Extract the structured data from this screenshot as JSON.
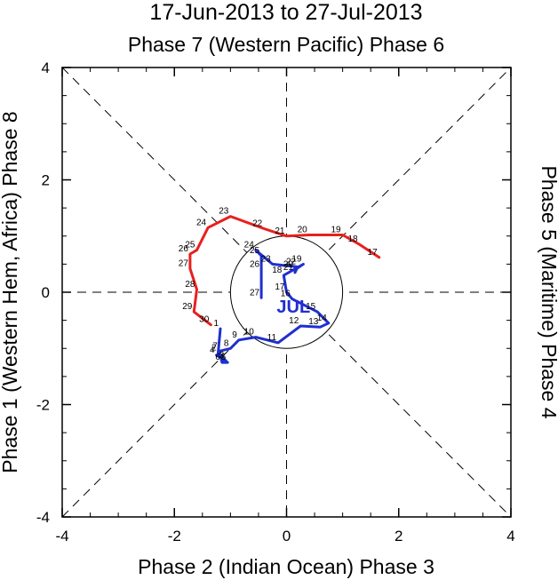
{
  "chart_data": {
    "type": "line",
    "title": "17-Jun-2013 to 27-Jul-2013",
    "top_label": "Phase 7 (Western Pacific) Phase 6",
    "bottom_label": "Phase 2 (Indian Ocean) Phase 3",
    "left_label": "Phase 1 (Western Hem, Africa) Phase 8",
    "right_label": "Phase 5 (Maritime) Phase 4",
    "xlim": [
      -4,
      4
    ],
    "ylim": [
      -4,
      4
    ],
    "x_ticks": [
      "-4",
      "-2",
      "0",
      "2",
      "4"
    ],
    "y_ticks": [
      "-4",
      "-2",
      "0",
      "2",
      "4"
    ],
    "month_label": "JUL",
    "colors": {
      "june": "#e8201e",
      "july": "#1f2fd0",
      "axis": "#000000"
    },
    "series": [
      {
        "name": "June",
        "color": "#e8201e",
        "points": [
          {
            "day": "17",
            "x": 1.65,
            "y": 0.62
          },
          {
            "day": "18",
            "x": 1.3,
            "y": 0.85
          },
          {
            "day": "19",
            "x": 1.0,
            "y": 1.02
          },
          {
            "day": "20",
            "x": 0.4,
            "y": 1.02
          },
          {
            "day": "21",
            "x": 0.0,
            "y": 1.0
          },
          {
            "day": "22",
            "x": -0.4,
            "y": 1.13
          },
          {
            "day": "23",
            "x": -1.0,
            "y": 1.35
          },
          {
            "day": "24",
            "x": -1.4,
            "y": 1.15
          },
          {
            "day": "25",
            "x": -1.6,
            "y": 0.75
          },
          {
            "day": "26",
            "x": -1.72,
            "y": 0.68
          },
          {
            "day": "27",
            "x": -1.72,
            "y": 0.42
          },
          {
            "day": "28",
            "x": -1.6,
            "y": 0.05
          },
          {
            "day": "29",
            "x": -1.65,
            "y": -0.35
          },
          {
            "day": "30",
            "x": -1.35,
            "y": -0.58
          }
        ]
      },
      {
        "name": "July",
        "color": "#1f2fd0",
        "points": [
          {
            "day": "1",
            "x": -1.18,
            "y": -0.65
          },
          {
            "day": "2",
            "x": -1.22,
            "y": -1.08
          },
          {
            "day": "3",
            "x": -1.08,
            "y": -1.22
          },
          {
            "day": "4",
            "x": -1.25,
            "y": -1.12
          },
          {
            "day": "5",
            "x": -1.05,
            "y": -1.25
          },
          {
            "day": "6",
            "x": -1.15,
            "y": -1.25
          },
          {
            "day": "7",
            "x": -1.2,
            "y": -1.05
          },
          {
            "day": "8",
            "x": -1.0,
            "y": -1.0
          },
          {
            "day": "9",
            "x": -0.85,
            "y": -0.85
          },
          {
            "day": "10",
            "x": -0.55,
            "y": -0.8
          },
          {
            "day": "11",
            "x": -0.15,
            "y": -0.9
          },
          {
            "day": "12",
            "x": 0.25,
            "y": -0.6
          },
          {
            "day": "13",
            "x": 0.6,
            "y": -0.62
          },
          {
            "day": "14",
            "x": 0.75,
            "y": -0.55
          },
          {
            "day": "15",
            "x": 0.55,
            "y": -0.35
          },
          {
            "day": "16",
            "x": 0.1,
            "y": -0.12
          },
          {
            "day": "17",
            "x": 0.0,
            "y": 0.0
          },
          {
            "day": "18",
            "x": -0.05,
            "y": 0.3
          },
          {
            "day": "19",
            "x": 0.3,
            "y": 0.5
          },
          {
            "day": "20",
            "x": 0.15,
            "y": 0.4
          },
          {
            "day": "21",
            "x": 0.15,
            "y": 0.35
          },
          {
            "day": "22",
            "x": 0.2,
            "y": 0.45
          },
          {
            "day": "23",
            "x": -0.25,
            "y": 0.5
          },
          {
            "day": "24",
            "x": -0.55,
            "y": 0.75
          },
          {
            "day": "25",
            "x": -0.45,
            "y": 0.65
          },
          {
            "day": "26",
            "x": -0.45,
            "y": 0.4
          },
          {
            "day": "27",
            "x": -0.45,
            "y": -0.1
          }
        ]
      }
    ]
  }
}
